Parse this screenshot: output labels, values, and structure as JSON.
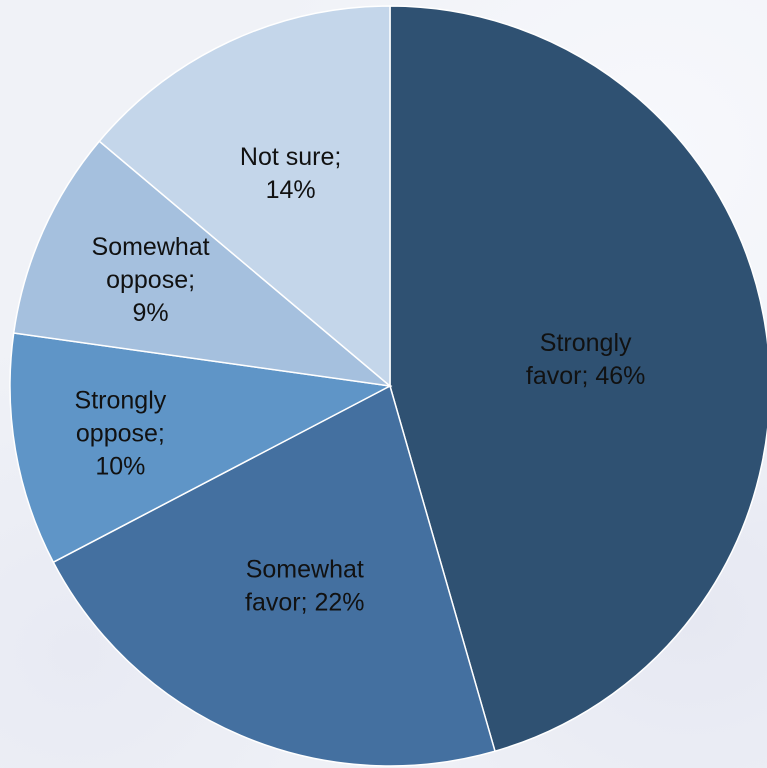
{
  "chart_data": {
    "type": "pie",
    "title": "",
    "start": "12 o'clock",
    "direction": "clockwise",
    "slices": [
      {
        "label": "Strongly favor",
        "value": 46,
        "display": [
          "Strongly",
          "favor; 46%"
        ],
        "color": "#2f5172"
      },
      {
        "label": "Somewhat favor",
        "value": 22,
        "display": [
          "Somewhat",
          "favor; 22%"
        ],
        "color": "#4470a0"
      },
      {
        "label": "Strongly oppose",
        "value": 10,
        "display": [
          "Strongly",
          "oppose;",
          "10%"
        ],
        "color": "#5f95c7"
      },
      {
        "label": "Somewhat oppose",
        "value": 9,
        "display": [
          "Somewhat",
          "oppose;",
          "9%"
        ],
        "color": "#a5c0de"
      },
      {
        "label": "Not sure",
        "value": 14,
        "display": [
          "Not sure;",
          "14%"
        ],
        "color": "#c4d6ea"
      }
    ]
  }
}
